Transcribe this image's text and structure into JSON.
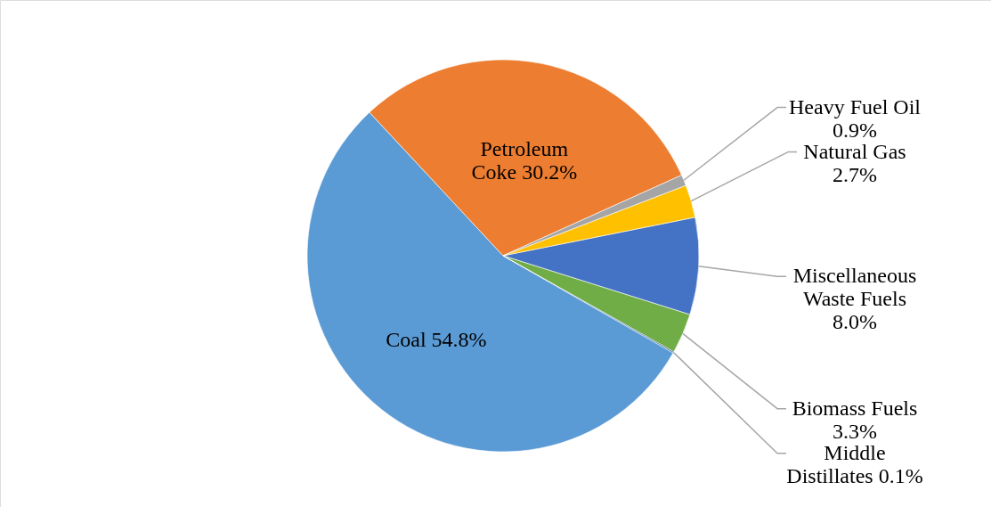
{
  "chart_data": {
    "type": "pie",
    "categories": [
      "Petroleum Coke",
      "Heavy Fuel Oil",
      "Natural Gas",
      "Miscellaneous Waste Fuels",
      "Biomass Fuels",
      "Middle Distillates",
      "Coal"
    ],
    "values": [
      30.2,
      0.9,
      2.7,
      8.0,
      3.3,
      0.1,
      54.8
    ],
    "value_labels": [
      "30.2%",
      "0.9%",
      "2.7%",
      "8.0%",
      "3.3%",
      "0.1%",
      "54.8%"
    ],
    "colors": [
      "#ed7d31",
      "#a5a5a5",
      "#ffc000",
      "#4472c4",
      "#70ad47",
      "#255e91",
      "#5b9bd5"
    ]
  }
}
